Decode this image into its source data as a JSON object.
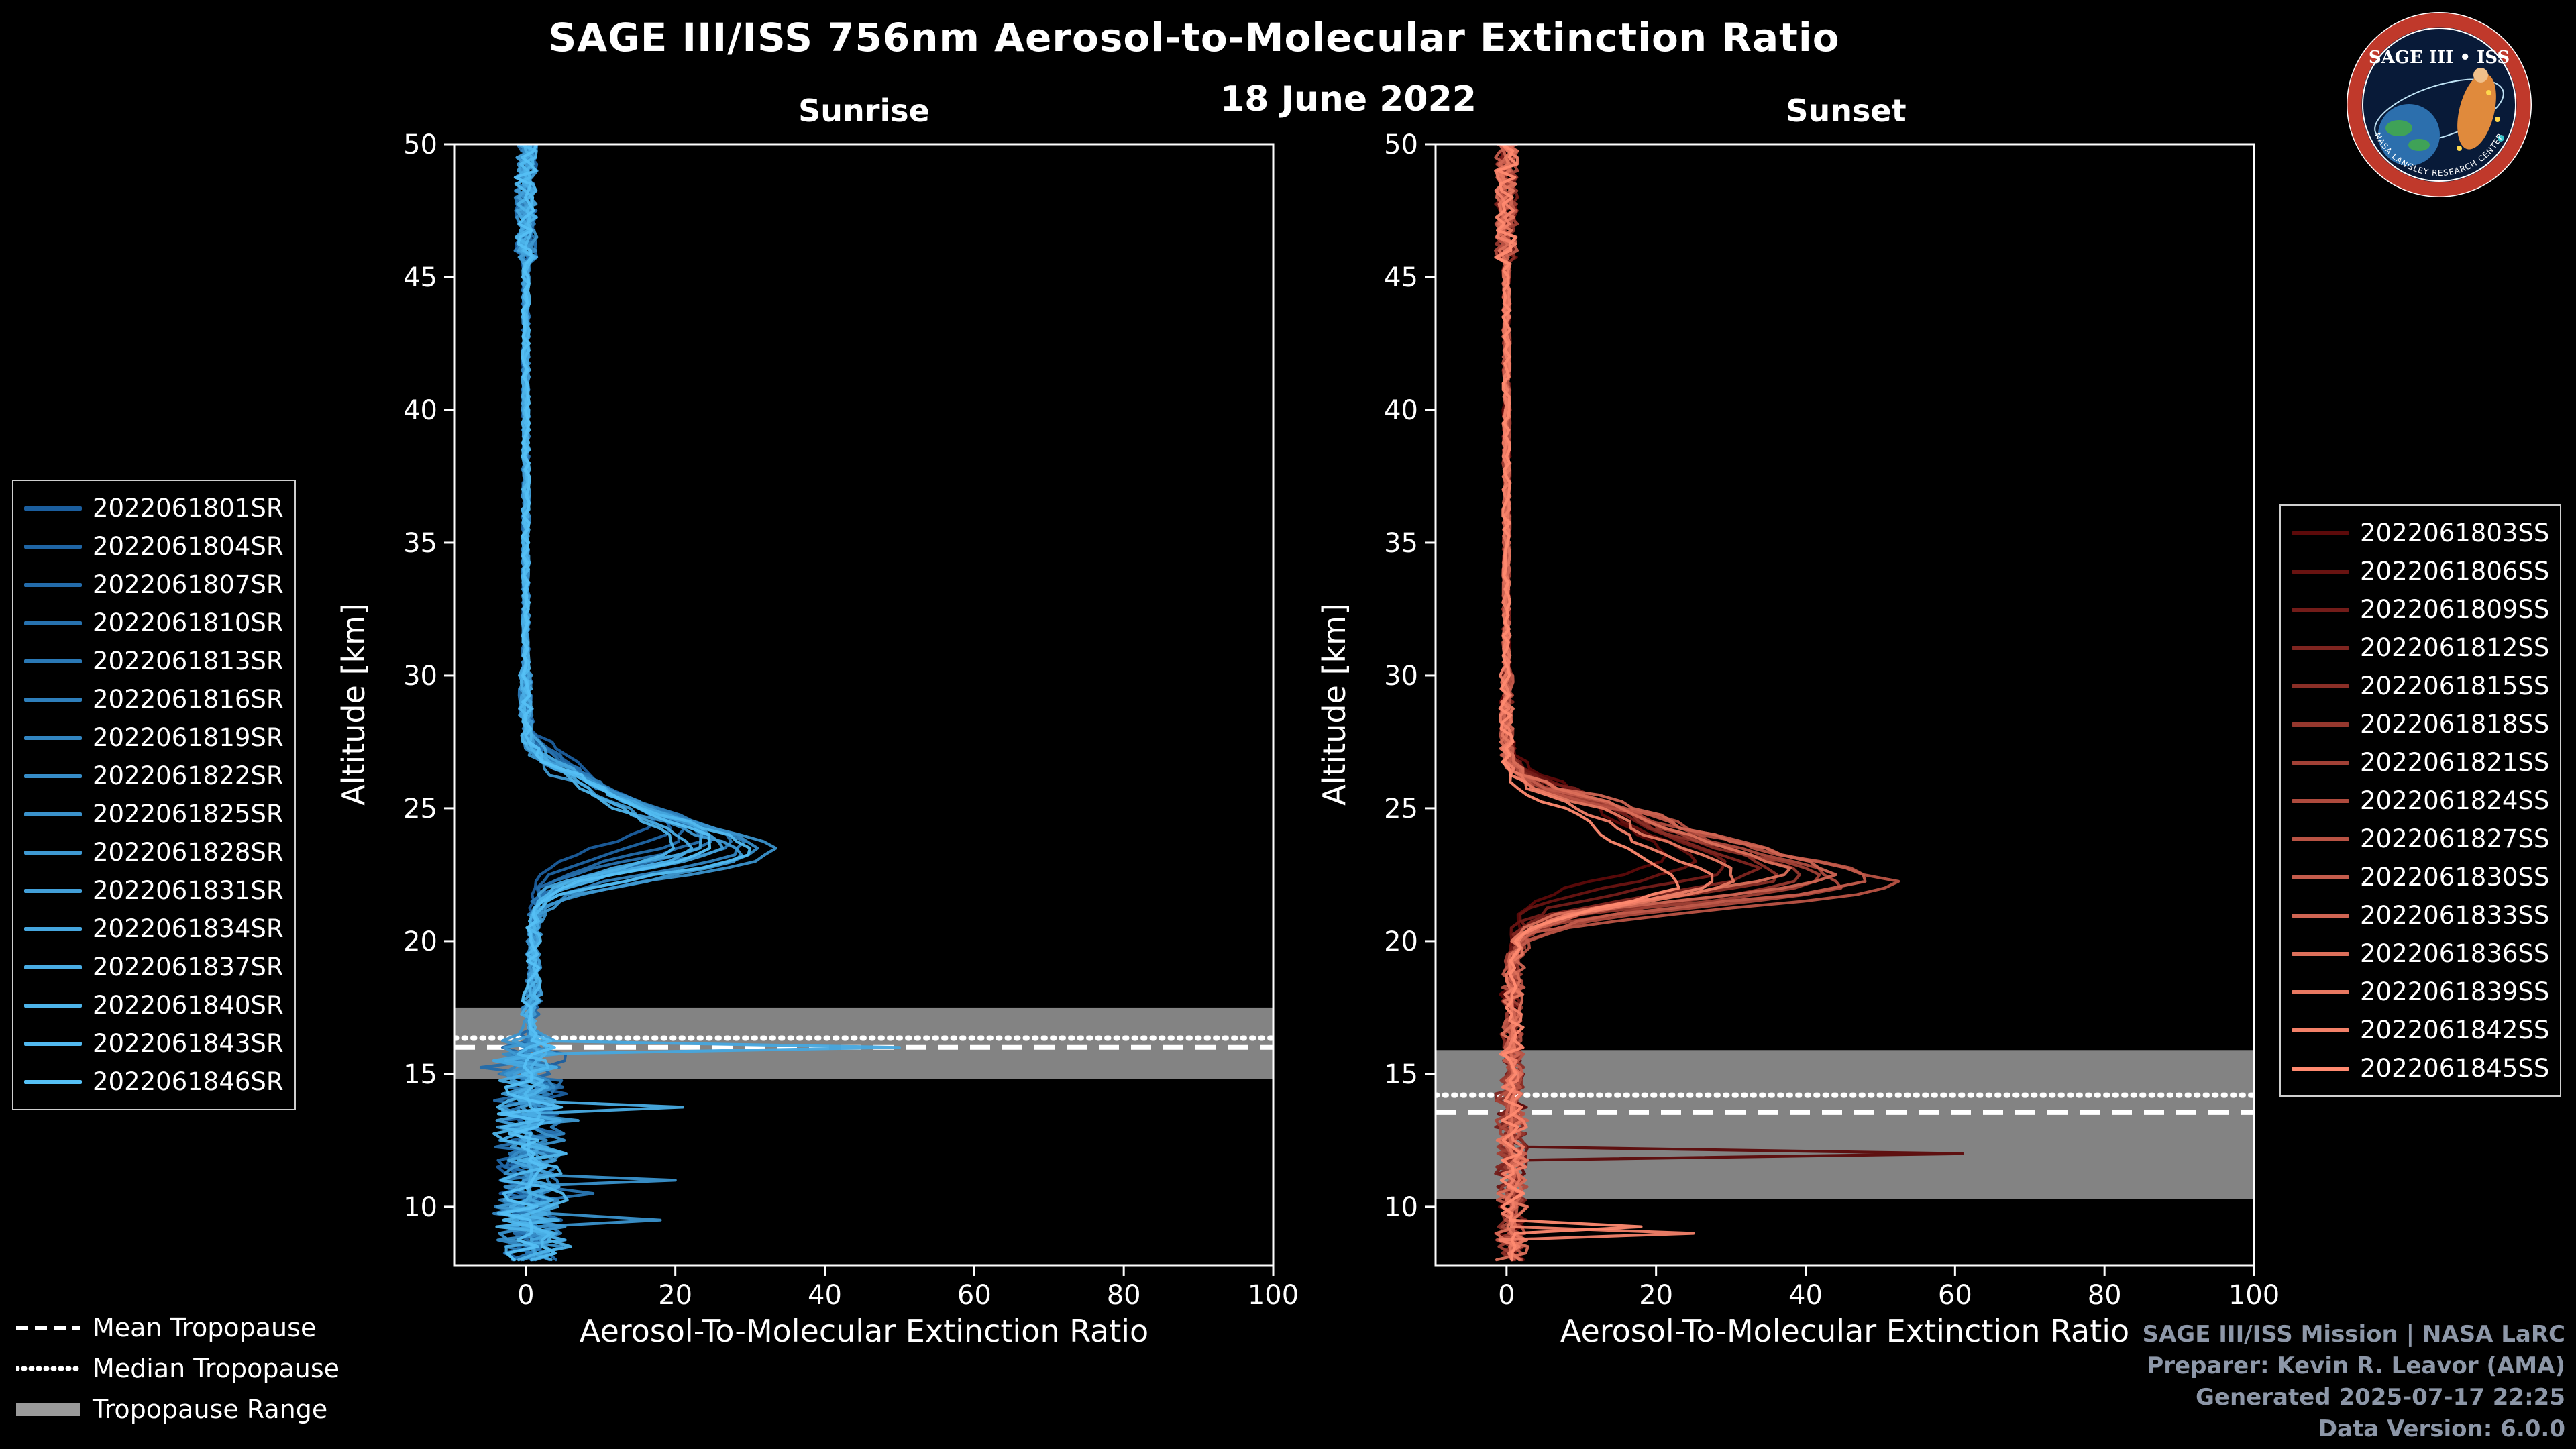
{
  "header": {
    "title": "SAGE III/ISS 756nm Aerosol-to-Molecular Extinction Ratio",
    "date": "18 June 2022"
  },
  "logo": {
    "title": "SAGE III • ISS",
    "ring_text": "NASA LANGLEY RESEARCH CENTER"
  },
  "credits": {
    "lines": [
      "SAGE III/ISS Mission | NASA LaRC",
      "Preparer: Kevin R. Leavor (AMA)",
      "Generated 2025-07-17 22:25",
      "Data Version: 6.0.0"
    ]
  },
  "chart_data": {
    "type": "line",
    "title": "SAGE III/ISS 756nm Aerosol-to-Molecular Extinction Ratio",
    "subtitle": "18 June 2022",
    "xlabel": "Aerosol-To-Molecular Extinction Ratio",
    "ylabel": "Altitude [km]",
    "xlim": [
      -9.5,
      100
    ],
    "ylim": [
      7.8,
      50
    ],
    "x_ticks": [
      0,
      20,
      40,
      60,
      80,
      100
    ],
    "y_ticks": [
      10,
      15,
      20,
      25,
      30,
      35,
      40,
      45,
      50
    ],
    "grid": false,
    "background": "#000000",
    "frame_color": "#ffffff",
    "band_color": "#9a9a9a",
    "legend_overlays": [
      {
        "label": "Mean Tropopause",
        "style": "dashed"
      },
      {
        "label": "Median Tropopause",
        "style": "dotted"
      },
      {
        "label": "Tropopause Range",
        "style": "band"
      }
    ],
    "panels": [
      {
        "id": "sunrise",
        "title": "Sunrise",
        "color_start": "#1b5e9e",
        "color_end": "#55c0f5",
        "noisy_below": 16.5,
        "noise_amp": 5,
        "tropopause": {
          "mean": 16.0,
          "median": 16.35,
          "range": [
            14.8,
            17.5
          ]
        },
        "series": [
          {
            "label": "2022061801SR",
            "peak": 16,
            "peak_alt": 24.5,
            "seed": 101,
            "spikes": []
          },
          {
            "label": "2022061804SR",
            "peak": 18,
            "peak_alt": 24.2,
            "seed": 102,
            "spikes": []
          },
          {
            "label": "2022061807SR",
            "peak": 20,
            "peak_alt": 24.0,
            "seed": 103,
            "spikes": [
              {
                "alt": 15.3,
                "x": -6
              }
            ]
          },
          {
            "label": "2022061810SR",
            "peak": 22,
            "peak_alt": 23.9,
            "seed": 104,
            "spikes": []
          },
          {
            "label": "2022061813SR",
            "peak": 24,
            "peak_alt": 23.8,
            "seed": 105,
            "spikes": [
              {
                "alt": 10.6,
                "x": 9
              }
            ]
          },
          {
            "label": "2022061816SR",
            "peak": 26,
            "peak_alt": 23.7,
            "seed": 106,
            "spikes": []
          },
          {
            "label": "2022061819SR",
            "peak": 28,
            "peak_alt": 23.5,
            "seed": 107,
            "spikes": []
          },
          {
            "label": "2022061822SR",
            "peak": 30,
            "peak_alt": 23.4,
            "seed": 108,
            "spikes": []
          },
          {
            "label": "2022061825SR",
            "peak": 32,
            "peak_alt": 23.3,
            "seed": 109,
            "spikes": [
              {
                "alt": 11.0,
                "x": 20
              },
              {
                "alt": 9.4,
                "x": 18
              }
            ]
          },
          {
            "label": "2022061828SR",
            "peak": 27,
            "peak_alt": 23.2,
            "seed": 110,
            "spikes": [
              {
                "alt": 13.3,
                "x": 7
              }
            ]
          },
          {
            "label": "2022061831SR",
            "peak": 25,
            "peak_alt": 23.6,
            "seed": 111,
            "spikes": []
          },
          {
            "label": "2022061834SR",
            "peak": 23,
            "peak_alt": 23.8,
            "seed": 112,
            "spikes": [
              {
                "alt": 15.9,
                "x": 50
              }
            ]
          },
          {
            "label": "2022061837SR",
            "peak": 21,
            "peak_alt": 23.5,
            "seed": 113,
            "spikes": [
              {
                "alt": 13.7,
                "x": 21
              }
            ]
          },
          {
            "label": "2022061840SR",
            "peak": 19,
            "peak_alt": 23.6,
            "seed": 114,
            "spikes": [
              {
                "alt": 8.6,
                "x": 6
              }
            ]
          },
          {
            "label": "2022061843SR",
            "peak": 29,
            "peak_alt": 23.4,
            "seed": 115,
            "spikes": []
          },
          {
            "label": "2022061846SR",
            "peak": 24,
            "peak_alt": 23.6,
            "seed": 116,
            "spikes": []
          }
        ]
      },
      {
        "id": "sunset",
        "title": "Sunset",
        "color_start": "#5c0a0a",
        "color_end": "#ff8a70",
        "noisy_below": 14.5,
        "noise_amp": 2.2,
        "tropopause": {
          "mean": 13.55,
          "median": 14.2,
          "range": [
            10.3,
            15.9
          ]
        },
        "series": [
          {
            "label": "2022061803SS",
            "peak": 20,
            "peak_alt": 23.2,
            "seed": 201,
            "spikes": [
              {
                "alt": 12.0,
                "x": 61
              }
            ]
          },
          {
            "label": "2022061806SS",
            "peak": 24,
            "peak_alt": 23.0,
            "seed": 202,
            "spikes": []
          },
          {
            "label": "2022061809SS",
            "peak": 28,
            "peak_alt": 22.8,
            "seed": 203,
            "spikes": []
          },
          {
            "label": "2022061812SS",
            "peak": 32,
            "peak_alt": 22.6,
            "seed": 204,
            "spikes": []
          },
          {
            "label": "2022061815SS",
            "peak": 35,
            "peak_alt": 22.5,
            "seed": 205,
            "spikes": []
          },
          {
            "label": "2022061818SS",
            "peak": 38,
            "peak_alt": 22.4,
            "seed": 206,
            "spikes": []
          },
          {
            "label": "2022061821SS",
            "peak": 40,
            "peak_alt": 22.3,
            "seed": 207,
            "spikes": []
          },
          {
            "label": "2022061824SS",
            "peak": 44,
            "peak_alt": 22.2,
            "seed": 208,
            "spikes": []
          },
          {
            "label": "2022061827SS",
            "peak": 50,
            "peak_alt": 22.1,
            "seed": 209,
            "spikes": []
          },
          {
            "label": "2022061830SS",
            "peak": 46,
            "peak_alt": 22.3,
            "seed": 210,
            "spikes": []
          },
          {
            "label": "2022061833SS",
            "peak": 42,
            "peak_alt": 22.5,
            "seed": 211,
            "spikes": []
          },
          {
            "label": "2022061836SS",
            "peak": 36,
            "peak_alt": 22.6,
            "seed": 212,
            "spikes": []
          },
          {
            "label": "2022061839SS",
            "peak": 30,
            "peak_alt": 22.4,
            "seed": 213,
            "spikes": []
          },
          {
            "label": "2022061842SS",
            "peak": 26,
            "peak_alt": 22.3,
            "seed": 214,
            "spikes": [
              {
                "alt": 9.0,
                "x": 25
              }
            ]
          },
          {
            "label": "2022061845SS",
            "peak": 22,
            "peak_alt": 22.2,
            "seed": 215,
            "spikes": [
              {
                "alt": 9.3,
                "x": 18
              }
            ]
          }
        ]
      }
    ]
  }
}
